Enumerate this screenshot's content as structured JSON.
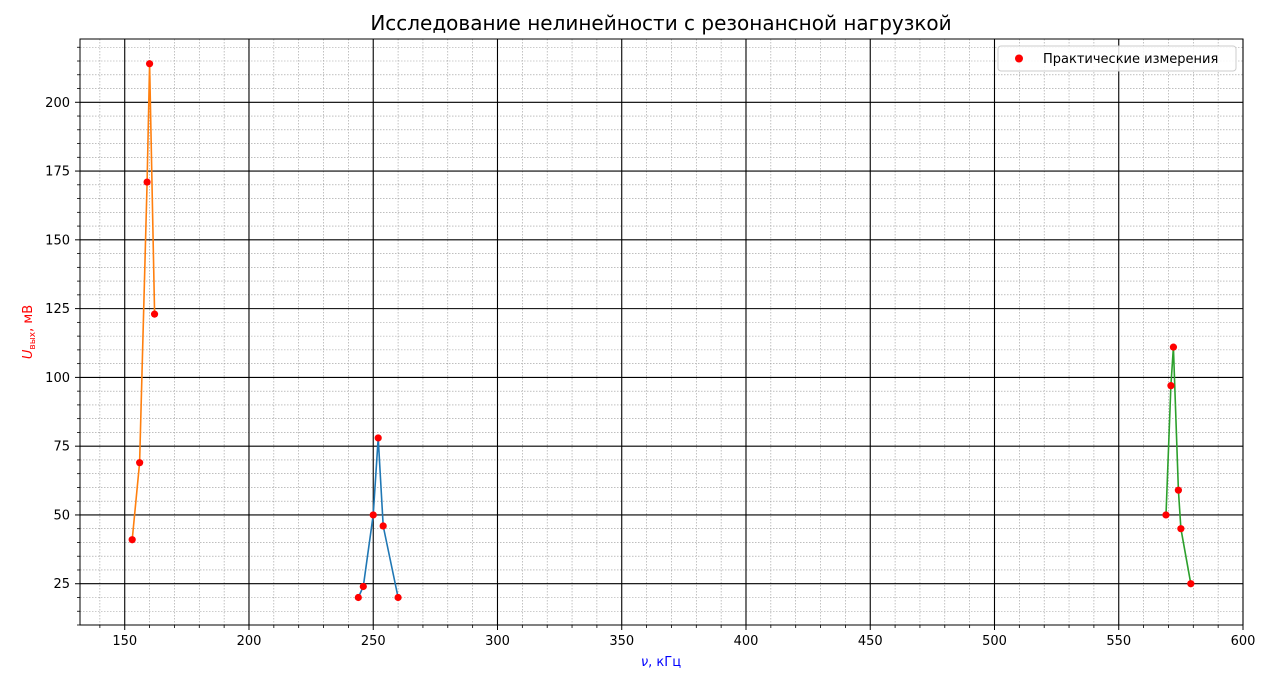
{
  "chart_data": {
    "type": "line",
    "title": "Исследование нелинейности с резонансной нагрузкой",
    "xlabel": {
      "symbol": "ν",
      "unit": ", кГц"
    },
    "ylabel": {
      "symbol": "U",
      "subscript": "вых",
      "unit": ", мВ"
    },
    "xlim": [
      132,
      600
    ],
    "ylim": [
      10,
      223
    ],
    "x_ticks": [
      150,
      200,
      250,
      300,
      350,
      400,
      450,
      500,
      550,
      600
    ],
    "y_ticks": [
      25,
      50,
      75,
      100,
      125,
      150,
      175,
      200
    ],
    "grid": true,
    "minor_grid": true,
    "legend_position": "top-right",
    "legend": [
      "Практические измерения"
    ],
    "series": [
      {
        "color": "#1f77b4",
        "x": [
          244,
          246,
          250,
          252,
          254,
          260
        ],
        "y": [
          20,
          24,
          50,
          78,
          46,
          20
        ]
      },
      {
        "color": "#ff7f0e",
        "x": [
          153,
          156,
          159,
          160,
          162
        ],
        "y": [
          41,
          69,
          171,
          214,
          123
        ]
      },
      {
        "color": "#2ca02c",
        "x": [
          569,
          571,
          572,
          574,
          575,
          579
        ],
        "y": [
          50,
          97,
          111,
          59,
          45,
          25
        ]
      }
    ],
    "marker_color": "#ff0000",
    "axis_label_colors": {
      "x": "#0000ff",
      "y": "#ff0000"
    }
  }
}
